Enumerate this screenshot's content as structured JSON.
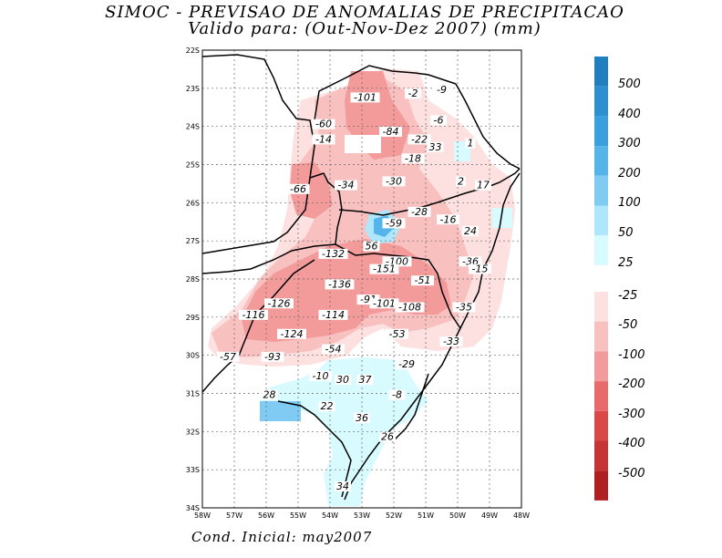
{
  "title": {
    "line1": "SIMOC - PREVISAO DE ANOMALIAS DE PRECIPITACAO",
    "line2": "Valido para: (Out-Nov-Dez 2007) (mm)"
  },
  "footer": "Cond. Inicial: may2007",
  "map": {
    "lat_labels": [
      "22S",
      "23S",
      "24S",
      "25S",
      "26S",
      "27S",
      "28S",
      "29S",
      "30S",
      "31S",
      "32S",
      "33S",
      "34S"
    ],
    "lon_labels": [
      "58W",
      "57W",
      "56W",
      "55W",
      "54W",
      "53W",
      "52W",
      "51W",
      "50W",
      "49W",
      "48W"
    ],
    "lat_range": [
      -34,
      -22
    ],
    "lon_range": [
      -58,
      -48
    ],
    "grid": true,
    "anomaly_labels": [
      {
        "text": "-101",
        "lon": -52.9,
        "lat": -23.3
      },
      {
        "text": "-2",
        "lon": -51.4,
        "lat": -23.2
      },
      {
        "text": "-9",
        "lon": -50.5,
        "lat": -23.1
      },
      {
        "text": "-6",
        "lon": -50.6,
        "lat": -23.9
      },
      {
        "text": "-60",
        "lon": -54.2,
        "lat": -24.0
      },
      {
        "text": "-84",
        "lon": -52.1,
        "lat": -24.2
      },
      {
        "text": "-14",
        "lon": -54.2,
        "lat": -24.4
      },
      {
        "text": "-22",
        "lon": -51.2,
        "lat": -24.4
      },
      {
        "text": "33",
        "lon": -50.7,
        "lat": -24.6
      },
      {
        "text": "1",
        "lon": -49.6,
        "lat": -24.5
      },
      {
        "text": "-18",
        "lon": -51.4,
        "lat": -24.9
      },
      {
        "text": "-30",
        "lon": -52.0,
        "lat": -25.5
      },
      {
        "text": "2",
        "lon": -49.9,
        "lat": -25.5
      },
      {
        "text": "17",
        "lon": -49.2,
        "lat": -25.6
      },
      {
        "text": "-66",
        "lon": -55.0,
        "lat": -25.7
      },
      {
        "text": "-34",
        "lon": -53.5,
        "lat": -25.6
      },
      {
        "text": "-28",
        "lon": -51.2,
        "lat": -26.3
      },
      {
        "text": "-16",
        "lon": -50.3,
        "lat": -26.5
      },
      {
        "text": "-59",
        "lon": -52.0,
        "lat": -26.6
      },
      {
        "text": "24",
        "lon": -49.6,
        "lat": -26.8
      },
      {
        "text": "56",
        "lon": -52.7,
        "lat": -27.2
      },
      {
        "text": "-132",
        "lon": -53.9,
        "lat": -27.4
      },
      {
        "text": "-100",
        "lon": -51.9,
        "lat": -27.6
      },
      {
        "text": "-36",
        "lon": -49.6,
        "lat": -27.6
      },
      {
        "text": "-151",
        "lon": -52.3,
        "lat": -27.8
      },
      {
        "text": "-15",
        "lon": -49.3,
        "lat": -27.8
      },
      {
        "text": "-51",
        "lon": -51.1,
        "lat": -28.1
      },
      {
        "text": "-136",
        "lon": -53.7,
        "lat": -28.2
      },
      {
        "text": "-126",
        "lon": -55.6,
        "lat": -28.7
      },
      {
        "text": "-91",
        "lon": -52.8,
        "lat": -28.6
      },
      {
        "text": "-101",
        "lon": -52.3,
        "lat": -28.7
      },
      {
        "text": "-108",
        "lon": -51.5,
        "lat": -28.8
      },
      {
        "text": "-35",
        "lon": -49.8,
        "lat": -28.8
      },
      {
        "text": "-116",
        "lon": -56.4,
        "lat": -29.0
      },
      {
        "text": "-114",
        "lon": -53.9,
        "lat": -29.0
      },
      {
        "text": "-124",
        "lon": -55.2,
        "lat": -29.5
      },
      {
        "text": "-53",
        "lon": -51.9,
        "lat": -29.5
      },
      {
        "text": "-33",
        "lon": -50.2,
        "lat": -29.7
      },
      {
        "text": "-54",
        "lon": -53.9,
        "lat": -29.9
      },
      {
        "text": "-57",
        "lon": -57.2,
        "lat": -30.1
      },
      {
        "text": "-93",
        "lon": -55.8,
        "lat": -30.1
      },
      {
        "text": "-29",
        "lon": -51.6,
        "lat": -30.3
      },
      {
        "text": "-10",
        "lon": -54.3,
        "lat": -30.6
      },
      {
        "text": "30",
        "lon": -53.6,
        "lat": -30.7
      },
      {
        "text": "37",
        "lon": -52.9,
        "lat": -30.7
      },
      {
        "text": "28",
        "lon": -55.9,
        "lat": -31.1
      },
      {
        "text": "-8",
        "lon": -51.9,
        "lat": -31.1
      },
      {
        "text": "22",
        "lon": -54.1,
        "lat": -31.4
      },
      {
        "text": "36",
        "lon": -53.0,
        "lat": -31.7
      },
      {
        "text": "26",
        "lon": -52.2,
        "lat": -32.2
      },
      {
        "text": "34",
        "lon": -53.6,
        "lat": -33.5
      }
    ]
  },
  "colorbar": {
    "positive": [
      {
        "label": "500",
        "color": "#1f7fbf"
      },
      {
        "label": "400",
        "color": "#2b8fd0"
      },
      {
        "label": "300",
        "color": "#3aa0dd"
      },
      {
        "label": "200",
        "color": "#55b4ea"
      },
      {
        "label": "100",
        "color": "#7fcbf3"
      },
      {
        "label": "50",
        "color": "#aee7fb"
      },
      {
        "label": "25",
        "color": "#d7fbff"
      }
    ],
    "negative": [
      {
        "label": "-25",
        "color": "#fde0e0"
      },
      {
        "label": "-50",
        "color": "#f9c0c0"
      },
      {
        "label": "-100",
        "color": "#f39a9a"
      },
      {
        "label": "-200",
        "color": "#e86a6a"
      },
      {
        "label": "-300",
        "color": "#da4848"
      },
      {
        "label": "-400",
        "color": "#c83434"
      },
      {
        "label": "-500",
        "color": "#b02020"
      }
    ]
  }
}
